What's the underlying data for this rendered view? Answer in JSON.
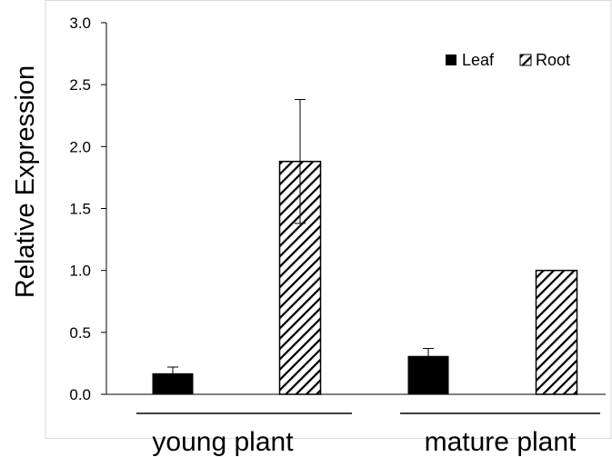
{
  "chart_data": {
    "type": "bar",
    "title": "",
    "xlabel": "",
    "ylabel": "Relative Expression",
    "ylim": [
      0,
      3.0
    ],
    "y_ticks": [
      "0.0",
      "0.5",
      "1.0",
      "1.5",
      "2.0",
      "2.5",
      "3.0"
    ],
    "categories": [
      "young plant",
      "mature plant"
    ],
    "series": [
      {
        "name": "Leaf",
        "fill": "solid",
        "color": "#000000",
        "values": [
          0.17,
          0.31
        ],
        "error": [
          0.05,
          0.06
        ]
      },
      {
        "name": "Root",
        "fill": "hatched",
        "color": "#000000",
        "values": [
          1.88,
          1.0
        ],
        "error": [
          0.5,
          0
        ]
      }
    ],
    "legend_position": "top-right",
    "grid": false
  }
}
